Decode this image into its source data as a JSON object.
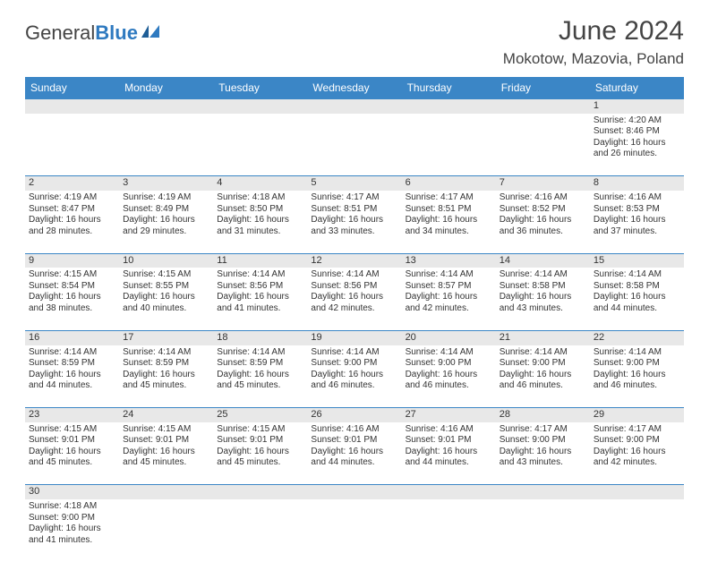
{
  "logo": {
    "text1": "General",
    "text2": "Blue"
  },
  "header": {
    "month_title": "June 2024",
    "location": "Mokotow, Mazovia, Poland"
  },
  "calendar": {
    "columns": [
      "Sunday",
      "Monday",
      "Tuesday",
      "Wednesday",
      "Thursday",
      "Friday",
      "Saturday"
    ],
    "header_bg": "#3b86c6",
    "header_fg": "#ffffff",
    "daynum_bg": "#e8e8e8",
    "border_color": "#3b86c6",
    "first_day_column_index": 6,
    "days": [
      {
        "n": 1,
        "sunrise": "4:20 AM",
        "sunset": "8:46 PM",
        "daylight": "16 hours and 26 minutes."
      },
      {
        "n": 2,
        "sunrise": "4:19 AM",
        "sunset": "8:47 PM",
        "daylight": "16 hours and 28 minutes."
      },
      {
        "n": 3,
        "sunrise": "4:19 AM",
        "sunset": "8:49 PM",
        "daylight": "16 hours and 29 minutes."
      },
      {
        "n": 4,
        "sunrise": "4:18 AM",
        "sunset": "8:50 PM",
        "daylight": "16 hours and 31 minutes."
      },
      {
        "n": 5,
        "sunrise": "4:17 AM",
        "sunset": "8:51 PM",
        "daylight": "16 hours and 33 minutes."
      },
      {
        "n": 6,
        "sunrise": "4:17 AM",
        "sunset": "8:51 PM",
        "daylight": "16 hours and 34 minutes."
      },
      {
        "n": 7,
        "sunrise": "4:16 AM",
        "sunset": "8:52 PM",
        "daylight": "16 hours and 36 minutes."
      },
      {
        "n": 8,
        "sunrise": "4:16 AM",
        "sunset": "8:53 PM",
        "daylight": "16 hours and 37 minutes."
      },
      {
        "n": 9,
        "sunrise": "4:15 AM",
        "sunset": "8:54 PM",
        "daylight": "16 hours and 38 minutes."
      },
      {
        "n": 10,
        "sunrise": "4:15 AM",
        "sunset": "8:55 PM",
        "daylight": "16 hours and 40 minutes."
      },
      {
        "n": 11,
        "sunrise": "4:14 AM",
        "sunset": "8:56 PM",
        "daylight": "16 hours and 41 minutes."
      },
      {
        "n": 12,
        "sunrise": "4:14 AM",
        "sunset": "8:56 PM",
        "daylight": "16 hours and 42 minutes."
      },
      {
        "n": 13,
        "sunrise": "4:14 AM",
        "sunset": "8:57 PM",
        "daylight": "16 hours and 42 minutes."
      },
      {
        "n": 14,
        "sunrise": "4:14 AM",
        "sunset": "8:58 PM",
        "daylight": "16 hours and 43 minutes."
      },
      {
        "n": 15,
        "sunrise": "4:14 AM",
        "sunset": "8:58 PM",
        "daylight": "16 hours and 44 minutes."
      },
      {
        "n": 16,
        "sunrise": "4:14 AM",
        "sunset": "8:59 PM",
        "daylight": "16 hours and 44 minutes."
      },
      {
        "n": 17,
        "sunrise": "4:14 AM",
        "sunset": "8:59 PM",
        "daylight": "16 hours and 45 minutes."
      },
      {
        "n": 18,
        "sunrise": "4:14 AM",
        "sunset": "8:59 PM",
        "daylight": "16 hours and 45 minutes."
      },
      {
        "n": 19,
        "sunrise": "4:14 AM",
        "sunset": "9:00 PM",
        "daylight": "16 hours and 46 minutes."
      },
      {
        "n": 20,
        "sunrise": "4:14 AM",
        "sunset": "9:00 PM",
        "daylight": "16 hours and 46 minutes."
      },
      {
        "n": 21,
        "sunrise": "4:14 AM",
        "sunset": "9:00 PM",
        "daylight": "16 hours and 46 minutes."
      },
      {
        "n": 22,
        "sunrise": "4:14 AM",
        "sunset": "9:00 PM",
        "daylight": "16 hours and 46 minutes."
      },
      {
        "n": 23,
        "sunrise": "4:15 AM",
        "sunset": "9:01 PM",
        "daylight": "16 hours and 45 minutes."
      },
      {
        "n": 24,
        "sunrise": "4:15 AM",
        "sunset": "9:01 PM",
        "daylight": "16 hours and 45 minutes."
      },
      {
        "n": 25,
        "sunrise": "4:15 AM",
        "sunset": "9:01 PM",
        "daylight": "16 hours and 45 minutes."
      },
      {
        "n": 26,
        "sunrise": "4:16 AM",
        "sunset": "9:01 PM",
        "daylight": "16 hours and 44 minutes."
      },
      {
        "n": 27,
        "sunrise": "4:16 AM",
        "sunset": "9:01 PM",
        "daylight": "16 hours and 44 minutes."
      },
      {
        "n": 28,
        "sunrise": "4:17 AM",
        "sunset": "9:00 PM",
        "daylight": "16 hours and 43 minutes."
      },
      {
        "n": 29,
        "sunrise": "4:17 AM",
        "sunset": "9:00 PM",
        "daylight": "16 hours and 42 minutes."
      },
      {
        "n": 30,
        "sunrise": "4:18 AM",
        "sunset": "9:00 PM",
        "daylight": "16 hours and 41 minutes."
      }
    ],
    "labels": {
      "sunrise_prefix": "Sunrise: ",
      "sunset_prefix": "Sunset: ",
      "daylight_prefix": "Daylight: "
    }
  }
}
